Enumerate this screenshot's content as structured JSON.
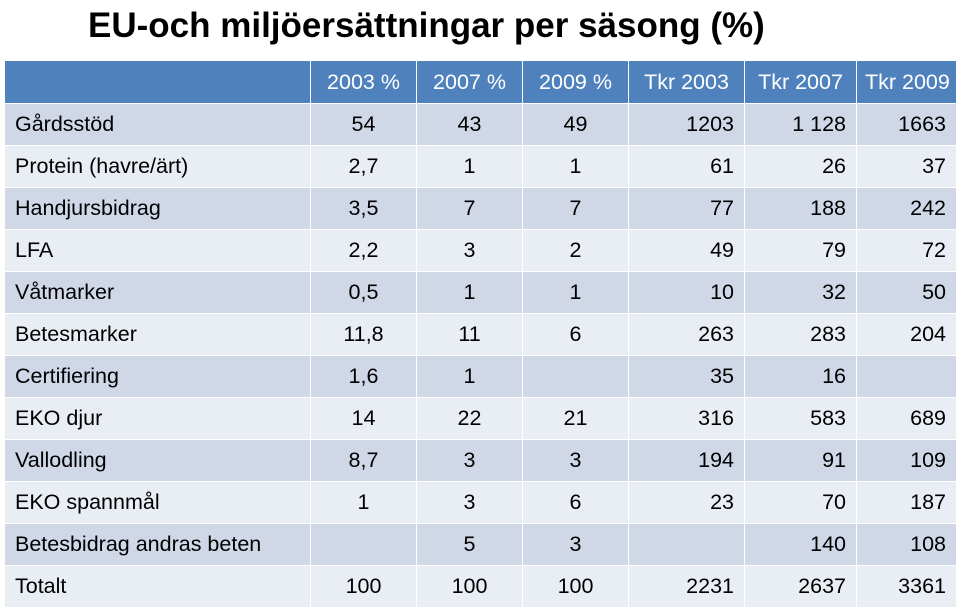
{
  "title": "EU-och miljöersättningar per säsong (%)",
  "table": {
    "headers": [
      "",
      "2003 %",
      "2007 %",
      "2009 %",
      "Tkr 2003",
      "Tkr 2007",
      "Tkr 2009"
    ],
    "rows": [
      [
        "Gårdsstöd",
        "54",
        "43",
        "49",
        "1203",
        "1 128",
        "1663"
      ],
      [
        "Protein (havre/ärt)",
        "2,7",
        "1",
        "1",
        "61",
        "26",
        "37"
      ],
      [
        "Handjursbidrag",
        "3,5",
        "7",
        "7",
        "77",
        "188",
        "242"
      ],
      [
        "LFA",
        "2,2",
        "3",
        "2",
        "49",
        "79",
        "72"
      ],
      [
        "Våtmarker",
        "0,5",
        "1",
        "1",
        "10",
        "32",
        "50"
      ],
      [
        "Betesmarker",
        "11,8",
        "11",
        "6",
        "263",
        "283",
        "204"
      ],
      [
        "Certifiering",
        "1,6",
        "1",
        "",
        "35",
        "16",
        ""
      ],
      [
        "EKO djur",
        "14",
        "22",
        "21",
        "316",
        "583",
        "689"
      ],
      [
        "Vallodling",
        "8,7",
        "3",
        "3",
        "194",
        "91",
        "109"
      ],
      [
        "EKO spannmål",
        "1",
        "3",
        "6",
        "23",
        "70",
        "187"
      ],
      [
        "Betesbidrag andras beten",
        "",
        "5",
        "3",
        "",
        "140",
        "108"
      ],
      [
        "Totalt",
        "100",
        "100",
        "100",
        "2231",
        "2637",
        "3361"
      ]
    ]
  }
}
